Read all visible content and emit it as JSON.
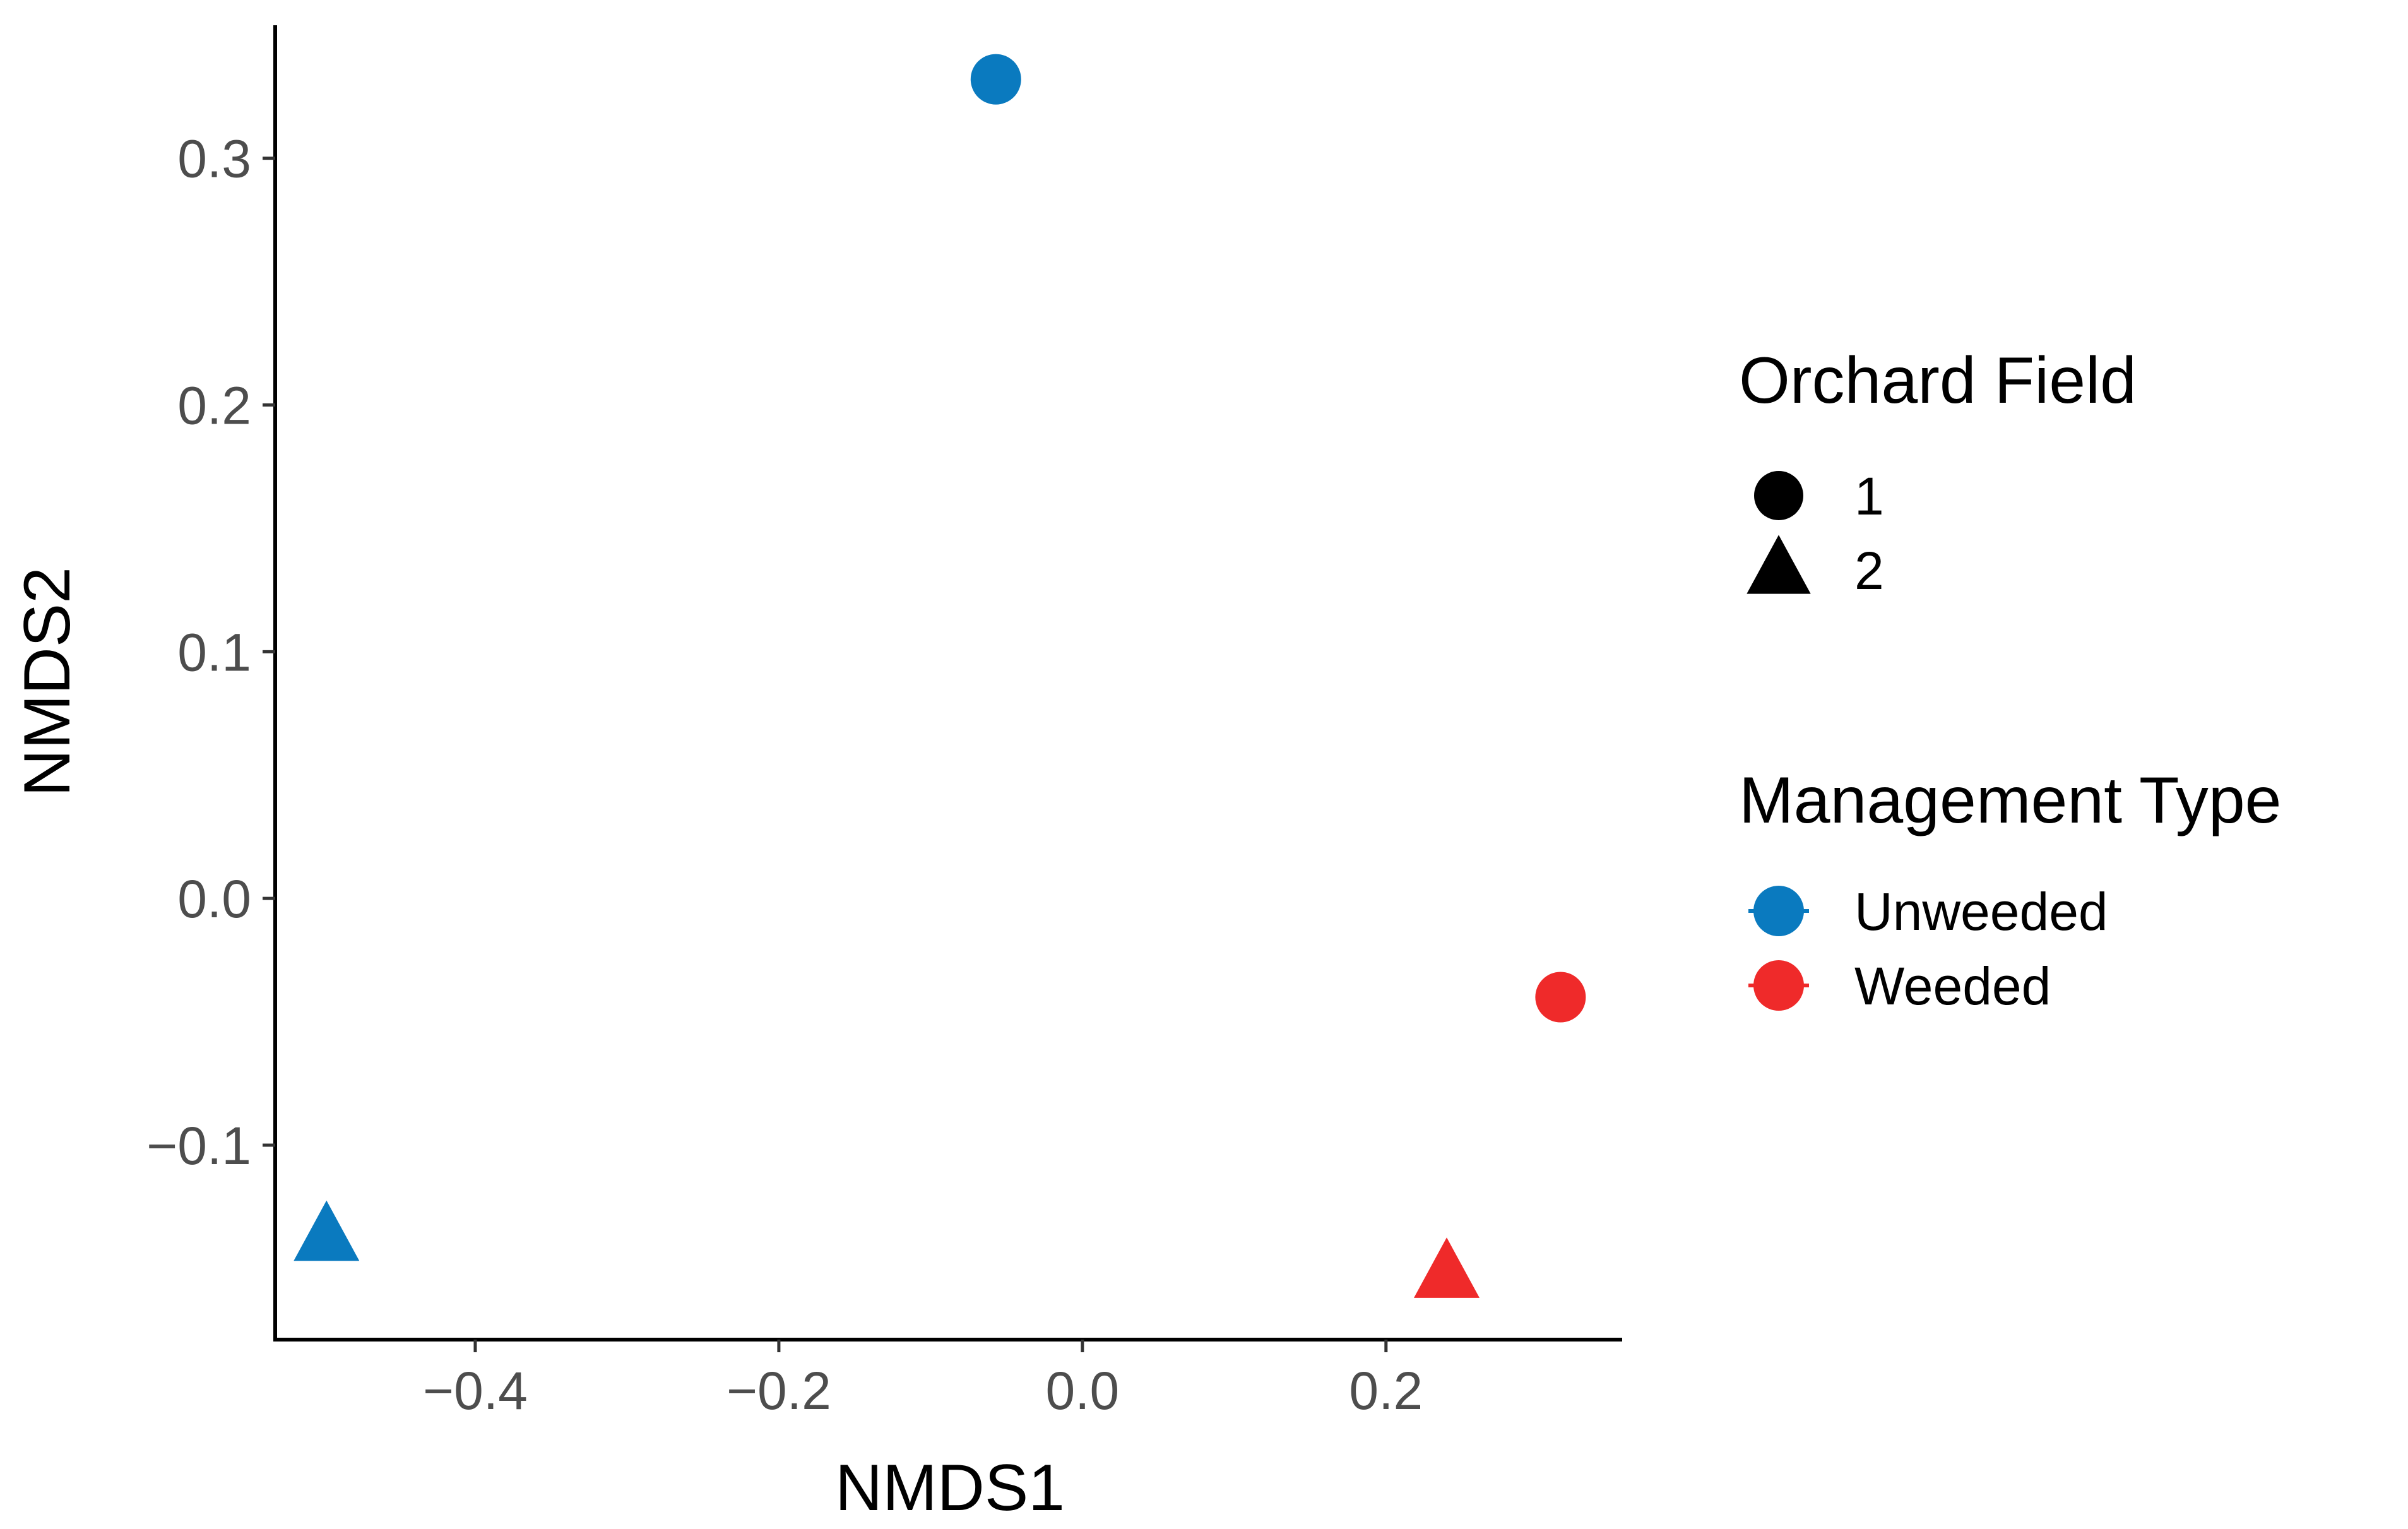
{
  "chart_data": {
    "type": "scatter",
    "title": "",
    "xlabel": "NMDS1",
    "ylabel": "NMDS2",
    "xlim": [
      -0.5318,
      0.3556
    ],
    "ylim": [
      -0.1788,
      0.3539
    ],
    "x_ticks": [
      {
        "value": -0.4,
        "label": "−0.4"
      },
      {
        "value": -0.2,
        "label": "−0.2"
      },
      {
        "value": 0.0,
        "label": "0.0"
      },
      {
        "value": 0.2,
        "label": "0.2"
      }
    ],
    "y_ticks": [
      {
        "value": -0.1,
        "label": "−0.1"
      },
      {
        "value": 0.0,
        "label": "0.0"
      },
      {
        "value": 0.1,
        "label": "0.1"
      },
      {
        "value": 0.2,
        "label": "0.2"
      },
      {
        "value": 0.3,
        "label": "0.3"
      }
    ],
    "grid": false,
    "legend_position": "right",
    "points": [
      {
        "x": -0.057,
        "y": 0.332,
        "management": "Unweeded",
        "field": "1"
      },
      {
        "x": -0.498,
        "y": -0.137,
        "management": "Unweeded",
        "field": "2"
      },
      {
        "x": 0.315,
        "y": -0.04,
        "management": "Weeded",
        "field": "1"
      },
      {
        "x": 0.24,
        "y": -0.152,
        "management": "Weeded",
        "field": "2"
      }
    ],
    "legends": {
      "shape": {
        "title": "Orchard Field",
        "entries": [
          {
            "label": "1",
            "shape": "circle"
          },
          {
            "label": "2",
            "shape": "triangle"
          }
        ]
      },
      "color": {
        "title": "Management Type",
        "entries": [
          {
            "label": "Unweeded",
            "color": "#0a7abf"
          },
          {
            "label": "Weeded",
            "color": "#ef2a2a"
          }
        ]
      }
    }
  }
}
